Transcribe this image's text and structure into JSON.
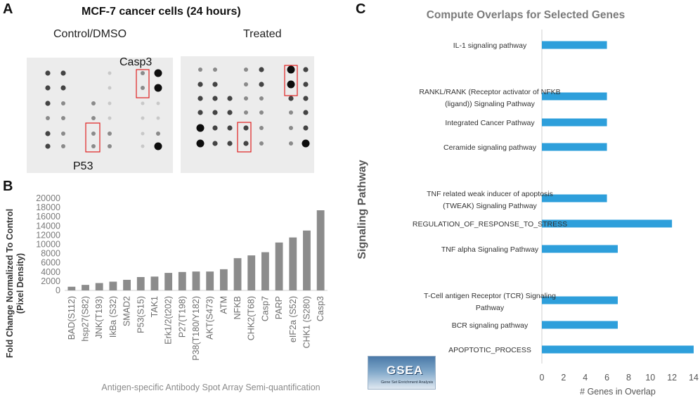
{
  "panel_a": {
    "letter": "A",
    "title": "MCF-7 cancer cells (24 hours)",
    "control_label": "Control/DMSO",
    "treated_label": "Treated",
    "casp3_label": "Casp3",
    "p53_label": "P53"
  },
  "panel_b": {
    "letter": "B"
  },
  "panel_c": {
    "letter": "C",
    "logo_text": "GSEA",
    "logo_subtitle": "Gene Set Enrichment Analysis"
  },
  "colors": {
    "bar_gray": "#8c8c8c",
    "bar_blue": "#2e9fdb",
    "highlight_box": "#e02020",
    "blot_bg": "#ececec"
  },
  "chart_data": [
    {
      "id": "B",
      "type": "bar",
      "title": "",
      "xlabel": "Antigen-specific Antibody Spot Array Semi-quantification",
      "ylabel": "Fold Change Normalized To Control (Pixel Density)",
      "ylim": [
        0,
        20000
      ],
      "yticks": [
        0,
        2000,
        4000,
        6000,
        8000,
        10000,
        12000,
        14000,
        16000,
        18000,
        20000
      ],
      "categories": [
        "BAD(S112)",
        "hsp27(S82)",
        "JNK(T193)",
        "IkBa (S32)",
        "SMAD2",
        "P53(S15)",
        "TAK1",
        "Erk1/2(t202)",
        "P27(T198)",
        "P38(T180/Y182)",
        "AKT(S473)",
        "ATM",
        "NFKB",
        "CHK2(T68)",
        "Casp7",
        "PARP",
        "eIF2a (S52)",
        "CHK1 (S280)",
        "Casp3"
      ],
      "values": [
        800,
        1200,
        1600,
        1900,
        2300,
        2900,
        3000,
        3800,
        4000,
        4100,
        4100,
        4600,
        7000,
        7600,
        8300,
        10400,
        11500,
        13000,
        17400
      ]
    },
    {
      "id": "C",
      "type": "bar",
      "orientation": "horizontal",
      "title": "Compute Overlaps for Selected Genes",
      "xlabel": "# Genes in Overlap",
      "ylabel": "Signaling Pathway",
      "xlim": [
        0,
        14
      ],
      "xticks": [
        0,
        2,
        4,
        6,
        8,
        10,
        12,
        14
      ],
      "categories": [
        [
          "IL-1 signaling pathway"
        ],
        [
          "RANKL/RANK (Receptor activator of NFKB",
          "(ligand)) Signaling Pathway"
        ],
        [
          "Integrated Cancer Pathway"
        ],
        [
          "Ceramide signaling pathway"
        ],
        [
          "TNF related weak inducer of apoptosis",
          "(TWEAK) Signaling Pathway"
        ],
        [
          "REGULATION_OF_RESPONSE_TO_STRESS"
        ],
        [
          "TNF alpha Signaling Pathway"
        ],
        [
          "T-Cell antigen Receptor (TCR) Signaling",
          "Pathway"
        ],
        [
          "BCR signaling pathway"
        ],
        [
          "APOPTOTIC_PROCESS"
        ]
      ],
      "values": [
        6,
        6,
        6,
        6,
        6,
        12,
        7,
        7,
        7,
        14
      ]
    }
  ]
}
